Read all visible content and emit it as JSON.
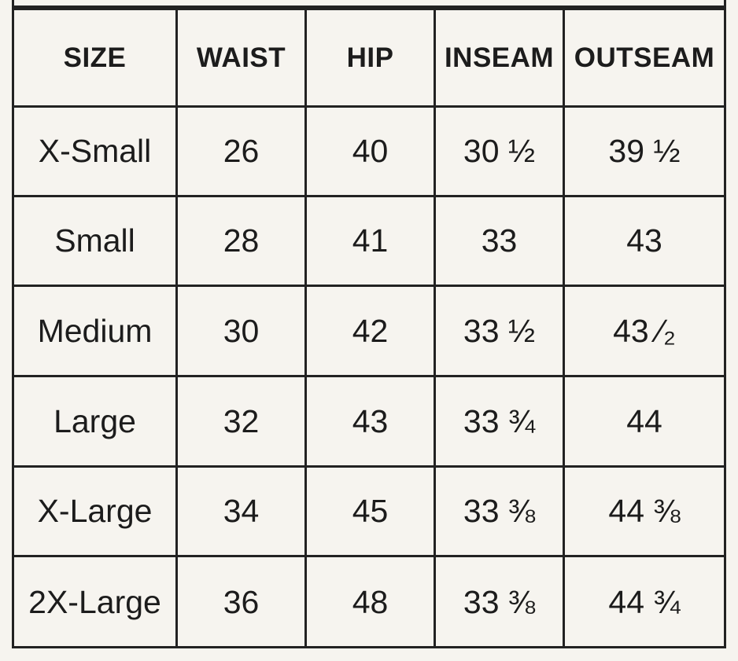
{
  "table": {
    "headers": [
      "SIZE",
      "WAIST",
      "HIP",
      "INSEAM",
      "OUTSEAM"
    ],
    "rows": [
      [
        "X-Small",
        "26",
        "40",
        "30 ½",
        "39 ½"
      ],
      [
        "Small",
        "28",
        "41",
        "33",
        "43"
      ],
      [
        "Medium",
        "30",
        "42",
        "33 ½",
        "43 ⁄₂"
      ],
      [
        "Large",
        "32",
        "43",
        "33 ¾",
        "44"
      ],
      [
        "X-Large",
        "34",
        "45",
        "33 ⅜",
        "44 ⅜"
      ],
      [
        "2X-Large",
        "36",
        "48",
        "33 ⅜",
        "44 ¾"
      ]
    ]
  }
}
